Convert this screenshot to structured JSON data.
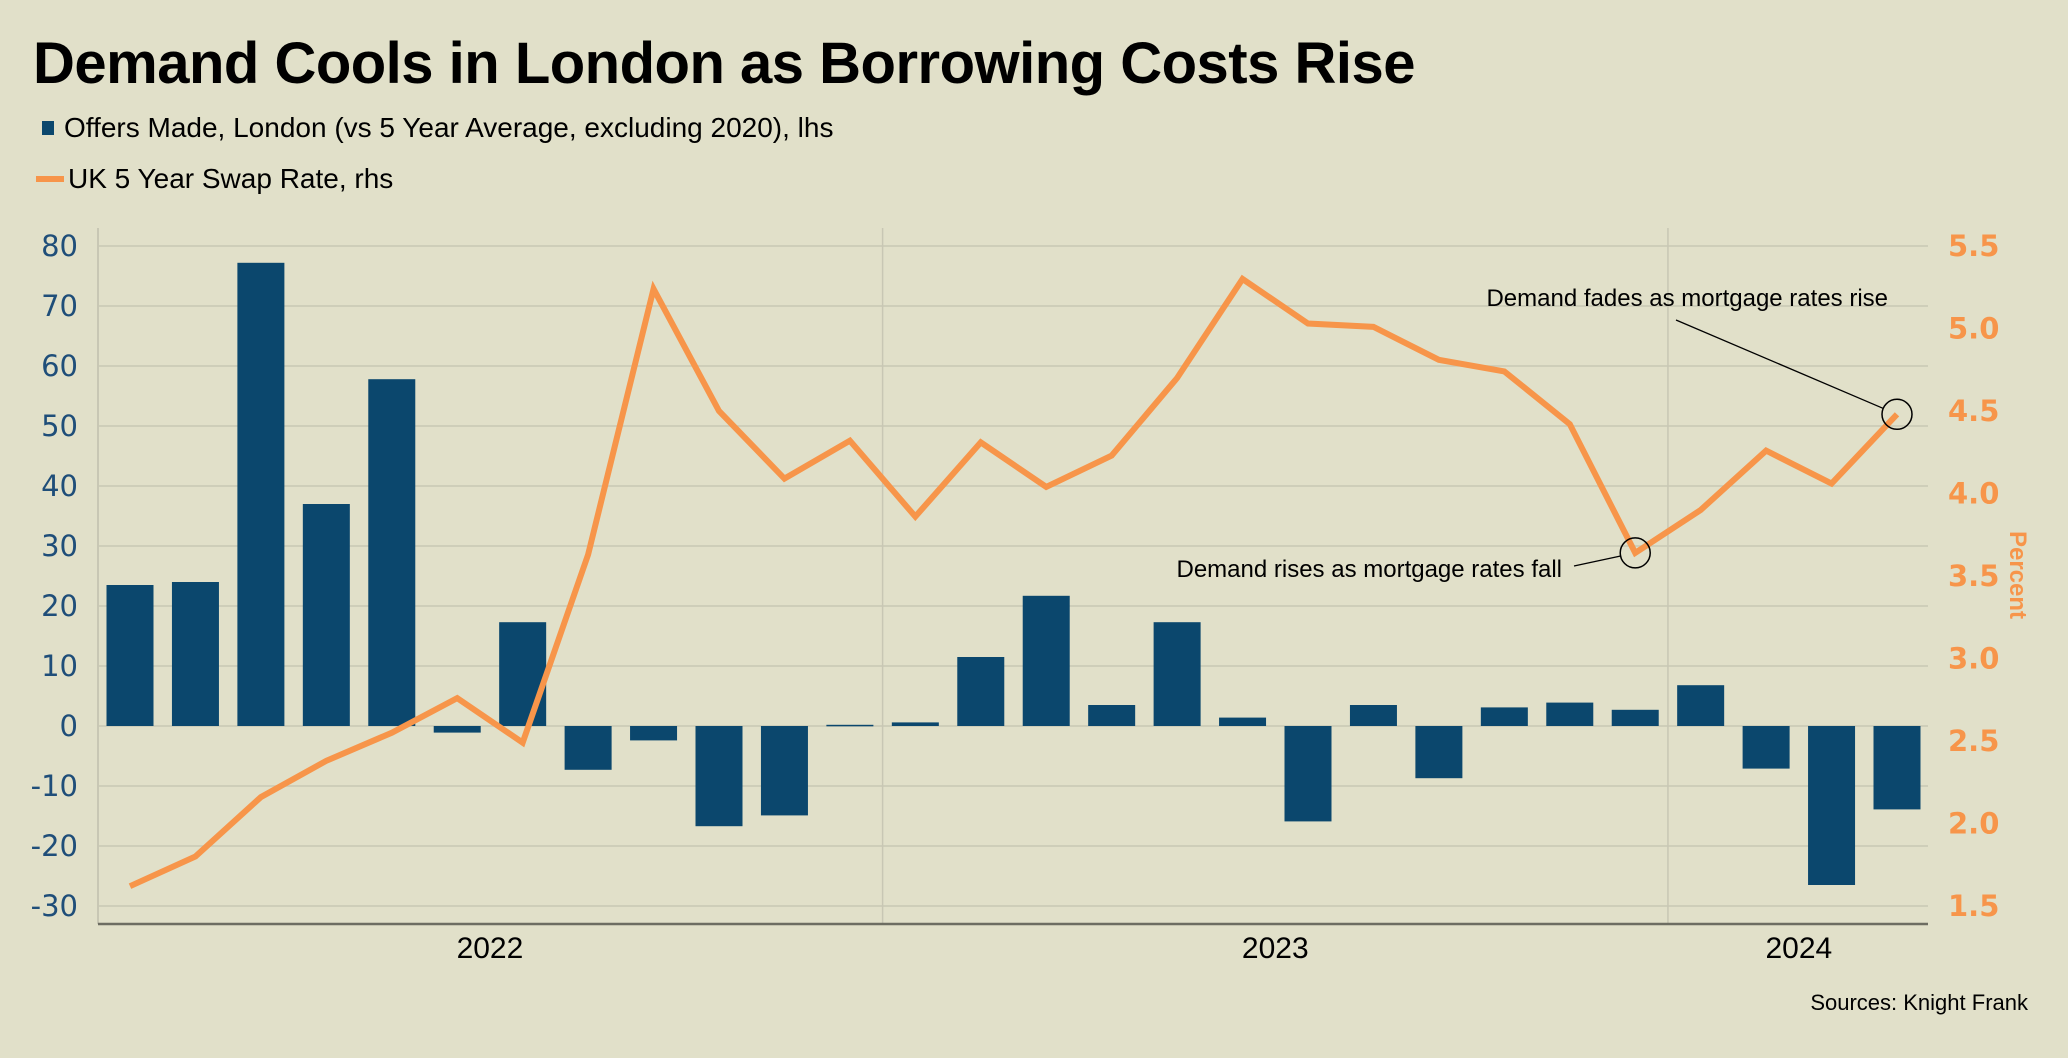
{
  "title": "Demand Cools in London as Borrowing Costs Rise",
  "legend": [
    {
      "label": "Offers Made, London (vs 5 Year Average, excluding 2020), lhs",
      "type": "bar",
      "color": "#0b476d"
    },
    {
      "label": "UK 5 Year Swap Rate, rhs",
      "type": "line",
      "color": "#f7954a"
    }
  ],
  "source": "Sources: Knight Frank",
  "chart_data": {
    "type": "bar+line",
    "title": "Demand Cools in London as Borrowing Costs Rise",
    "x_period_labels": [
      "2022",
      "2023",
      "2024"
    ],
    "x": [
      "2022-01",
      "2022-02",
      "2022-03",
      "2022-04",
      "2022-05",
      "2022-06",
      "2022-07",
      "2022-08",
      "2022-09",
      "2022-10",
      "2022-11",
      "2022-12",
      "2023-01",
      "2023-02",
      "2023-03",
      "2023-04",
      "2023-05",
      "2023-06",
      "2023-07",
      "2023-08",
      "2023-09",
      "2023-10",
      "2023-11",
      "2023-12",
      "2024-01",
      "2024-02",
      "2024-03",
      "2024-04"
    ],
    "series": [
      {
        "name": "Offers Made, London (vs 5 Year Average, excluding 2020), lhs",
        "type": "bar",
        "axis": "left",
        "color": "#0b476d",
        "values": [
          23.5,
          24.0,
          77.2,
          37.0,
          57.8,
          -1.1,
          17.3,
          -7.3,
          -2.4,
          -16.7,
          -14.9,
          0.2,
          0.6,
          11.5,
          21.7,
          3.5,
          17.3,
          1.4,
          -15.9,
          3.5,
          -8.7,
          3.1,
          3.9,
          2.7,
          6.8,
          -7.1,
          -26.5,
          -13.9
        ]
      },
      {
        "name": "UK 5 Year Swap Rate, rhs",
        "type": "line",
        "axis": "right",
        "color": "#f7954a",
        "values": [
          1.62,
          1.8,
          2.16,
          2.38,
          2.55,
          2.76,
          2.49,
          3.63,
          5.24,
          4.5,
          4.09,
          4.32,
          3.86,
          4.31,
          4.04,
          4.23,
          4.7,
          5.3,
          5.03,
          5.01,
          4.81,
          4.74,
          4.42,
          3.64,
          3.9,
          4.26,
          4.06,
          4.48
        ]
      }
    ],
    "y_left": {
      "label": "",
      "ylim": [
        -30,
        80
      ],
      "ticks": [
        "80",
        "70",
        "60",
        "50",
        "40",
        "30",
        "20",
        "10",
        "0",
        "-10",
        "-20",
        "-30"
      ],
      "color": "#1f4e79"
    },
    "y_right": {
      "label": "Percent",
      "ylim": [
        1.5,
        5.5
      ],
      "ticks": [
        "5.5",
        "5.0",
        "4.5",
        "4.0",
        "3.5",
        "3.0",
        "2.5",
        "2.0",
        "1.5"
      ],
      "color": "#f7954a"
    },
    "grid": true,
    "legend_position": "top-left",
    "annotations": [
      {
        "text": "Demand fades as mortgage rates rise",
        "point_index": 27
      },
      {
        "text": "Demand rises as mortgage rates fall",
        "point_index": 23
      }
    ]
  }
}
